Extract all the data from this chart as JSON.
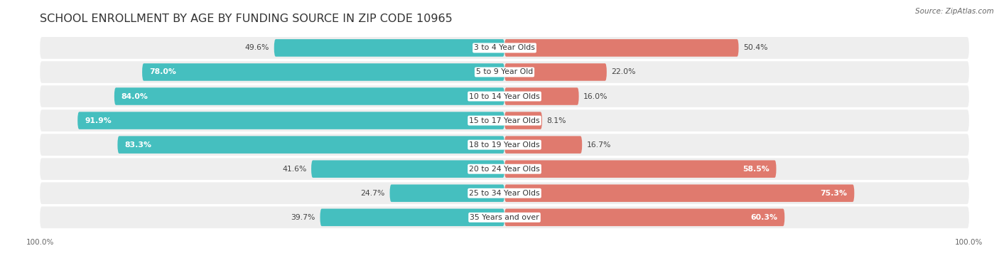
{
  "title": "SCHOOL ENROLLMENT BY AGE BY FUNDING SOURCE IN ZIP CODE 10965",
  "source": "Source: ZipAtlas.com",
  "categories": [
    "3 to 4 Year Olds",
    "5 to 9 Year Old",
    "10 to 14 Year Olds",
    "15 to 17 Year Olds",
    "18 to 19 Year Olds",
    "20 to 24 Year Olds",
    "25 to 34 Year Olds",
    "35 Years and over"
  ],
  "public_values": [
    49.6,
    78.0,
    84.0,
    91.9,
    83.3,
    41.6,
    24.7,
    39.7
  ],
  "private_values": [
    50.4,
    22.0,
    16.0,
    8.1,
    16.7,
    58.5,
    75.3,
    60.3
  ],
  "public_color": "#45bfbf",
  "private_color": "#e07a6e",
  "row_bg_color": "#eeeeee",
  "title_fontsize": 11.5,
  "label_fontsize": 7.8,
  "value_fontsize": 7.8,
  "legend_fontsize": 8.5,
  "source_fontsize": 7.5,
  "axis_label_fontsize": 7.5,
  "pub_label_inside_threshold": 55,
  "priv_label_inside_threshold": 55
}
